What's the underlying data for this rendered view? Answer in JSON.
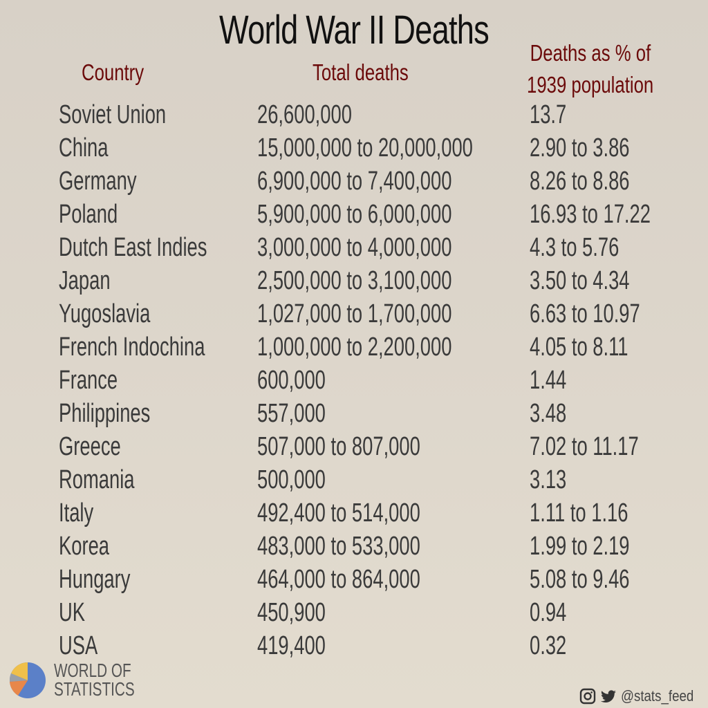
{
  "title": "World War II Deaths",
  "chart_data": {
    "type": "table",
    "title": "World War II Deaths",
    "columns": [
      "Country",
      "Total deaths",
      "Deaths as % of 1939 population"
    ],
    "rows": [
      [
        "Soviet Union",
        "26,600,000",
        "13.7"
      ],
      [
        "China",
        "15,000,000 to 20,000,000",
        "2.90 to 3.86"
      ],
      [
        "Germany",
        "6,900,000 to 7,400,000",
        "8.26 to 8.86"
      ],
      [
        "Poland",
        "5,900,000 to 6,000,000",
        "16.93 to 17.22"
      ],
      [
        "Dutch East Indies",
        "3,000,000 to 4,000,000",
        "4.3 to 5.76"
      ],
      [
        "Japan",
        "2,500,000 to 3,100,000",
        "3.50 to 4.34"
      ],
      [
        "Yugoslavia",
        "1,027,000 to 1,700,000",
        "6.63 to 10.97"
      ],
      [
        "French Indochina",
        "1,000,000 to 2,200,000",
        "4.05 to 8.11"
      ],
      [
        "France",
        "600,000",
        "1.44"
      ],
      [
        "Philippines",
        "557,000",
        "3.48"
      ],
      [
        "Greece",
        "507,000 to 807,000",
        "7.02 to 11.17"
      ],
      [
        "Romania",
        "500,000",
        "3.13"
      ],
      [
        "Italy",
        "492,400 to 514,000",
        "1.11 to 1.16"
      ],
      [
        "Korea",
        "483,000 to 533,000",
        "1.99 to 2.19"
      ],
      [
        "Hungary",
        "464,000 to 864,000",
        "5.08 to 9.46"
      ],
      [
        "UK",
        "450,900",
        "0.94"
      ],
      [
        "USA",
        "419,400",
        "0.32"
      ]
    ]
  },
  "headers": {
    "country": "Country",
    "total": "Total deaths",
    "pct_line1": "Deaths as % of",
    "pct_line2": "1939 population"
  },
  "footer": {
    "logo_line1": "WORLD OF",
    "logo_line2": "STATISTICS",
    "handle": "@stats_feed"
  },
  "colors": {
    "background": "#ddd6cb",
    "header": "#6b0a0a",
    "text": "#3a3a3a",
    "title": "#111111"
  },
  "icons": [
    "pie-chart-logo-icon",
    "instagram-icon",
    "twitter-icon"
  ]
}
